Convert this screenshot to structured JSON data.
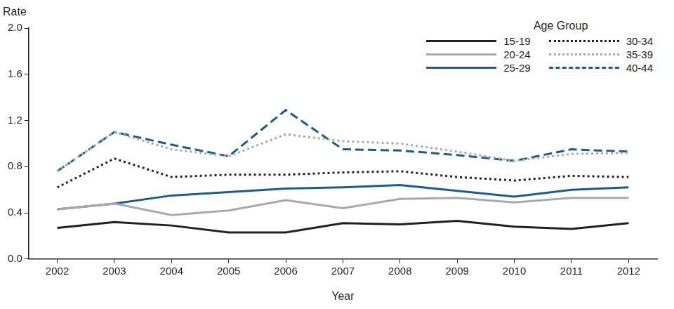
{
  "chart_data": {
    "type": "line",
    "xlabel": "Year",
    "ylabel": "Rate",
    "legend_title": "Age Group",
    "legend": "top-right",
    "grid": false,
    "categories": [
      "2002",
      "2003",
      "2004",
      "2005",
      "2006",
      "2007",
      "2008",
      "2009",
      "2010",
      "2011",
      "2012"
    ],
    "ylim": [
      0,
      2.0
    ],
    "yticks": [
      {
        "value": 0,
        "label": "0.0"
      },
      0.4,
      0.8,
      1.2,
      1.6,
      {
        "value": 2.0,
        "label": "2.0"
      }
    ],
    "series": [
      {
        "name": "15-19",
        "color": "#231f20",
        "line_style": "solid",
        "values": [
          0.27,
          0.32,
          0.29,
          0.23,
          0.23,
          0.31,
          0.3,
          0.33,
          0.28,
          0.26,
          0.31
        ]
      },
      {
        "name": "20-24",
        "color": "#a7a9ac",
        "line_style": "solid",
        "values": [
          0.43,
          0.48,
          0.38,
          0.42,
          0.51,
          0.44,
          0.52,
          0.53,
          0.49,
          0.53,
          0.53
        ]
      },
      {
        "name": "25-29",
        "color": "#1f5a8e",
        "line_style": "solid",
        "values": [
          0.43,
          0.48,
          0.55,
          0.58,
          0.61,
          0.62,
          0.64,
          0.59,
          0.54,
          0.6,
          0.62
        ]
      },
      {
        "name": "30-34",
        "color": "#231f20",
        "line_style": "dotted",
        "values": [
          0.62,
          0.87,
          0.71,
          0.73,
          0.73,
          0.75,
          0.76,
          0.71,
          0.68,
          0.72,
          0.71
        ]
      },
      {
        "name": "35-39",
        "color": "#a7a9ac",
        "line_style": "dotted",
        "values": [
          0.76,
          1.1,
          0.95,
          0.89,
          1.08,
          1.02,
          1.0,
          0.93,
          0.85,
          0.91,
          0.92
        ]
      },
      {
        "name": "40-44",
        "color": "#1f5a8e",
        "line_style": "dashed",
        "values": [
          0.76,
          1.1,
          0.99,
          0.89,
          1.29,
          0.95,
          0.94,
          0.9,
          0.85,
          0.95,
          0.93
        ]
      }
    ]
  }
}
